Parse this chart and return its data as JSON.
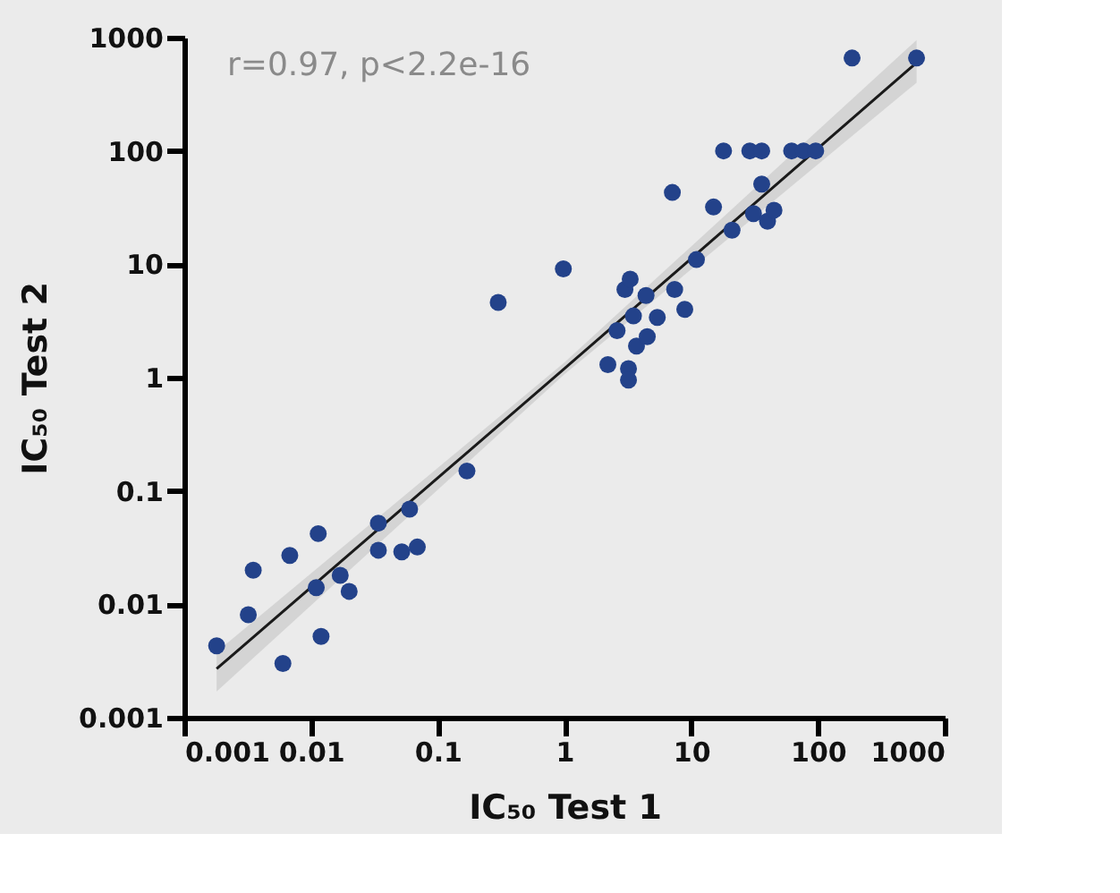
{
  "chart_data": {
    "type": "scatter",
    "xlabel": "IC₅₀ Test 1",
    "ylabel": "IC₅₀ Test 2",
    "annotations": [
      "r=0.97, p<2.2e-16"
    ],
    "log": "xy",
    "grid": false,
    "xlim": [
      0.001,
      1000
    ],
    "ylim": [
      0.001,
      1000
    ],
    "xticks": [
      0.001,
      0.01,
      0.1,
      1,
      10,
      100,
      1000
    ],
    "yticks": [
      0.001,
      0.01,
      0.1,
      1,
      10,
      100,
      1000
    ],
    "series": [
      {
        "marker": "circle",
        "color": "#23428a",
        "x": [
          0.0018,
          0.0032,
          0.0035,
          0.006,
          0.0068,
          0.011,
          0.0114,
          0.012,
          0.017,
          0.02,
          0.034,
          0.034,
          0.052,
          0.069,
          0.06,
          0.17,
          0.3,
          0.98,
          2.2,
          2.6,
          3.2,
          3.2,
          3.0,
          3.3,
          3.5,
          3.7,
          4.4,
          4.5,
          5.4,
          7.4,
          8.9,
          7.1,
          11,
          15,
          18,
          21,
          29,
          36,
          31,
          36,
          40,
          45,
          62,
          77,
          96,
          186,
          600
        ],
        "values": [
          0.0043,
          0.0081,
          0.02,
          0.003,
          0.027,
          0.014,
          0.042,
          0.0052,
          0.018,
          0.013,
          0.03,
          0.052,
          0.029,
          0.032,
          0.069,
          0.15,
          4.6,
          9.1,
          1.3,
          2.6,
          1.2,
          0.95,
          6.0,
          7.4,
          3.5,
          1.9,
          5.3,
          2.3,
          3.4,
          6.0,
          4.0,
          43,
          11,
          32,
          100,
          20,
          100,
          100,
          28,
          51,
          24,
          30,
          100,
          100,
          100,
          660,
          660
        ]
      },
      {
        "type": "line",
        "line_style": "solid",
        "color": "#1a1a1a",
        "x": [
          0.0018,
          1,
          600
        ],
        "values": [
          0.0027,
          1.2,
          600
        ],
        "lower": [
          0.0017,
          1.07,
          400
        ],
        "upper": [
          0.0038,
          1.36,
          950
        ]
      }
    ]
  }
}
